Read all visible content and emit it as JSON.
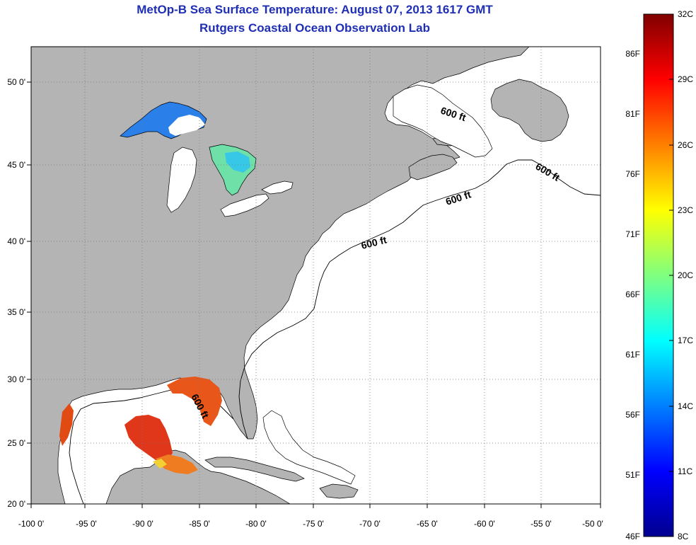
{
  "header": {
    "title": "MetOp-B Sea Surface Temperature:  August 07, 2013 1617 GMT",
    "subtitle": "Rutgers Coastal Ocean Observation Lab"
  },
  "map": {
    "lat_ticks": [
      "50 0'",
      "45 0'",
      "40 0'",
      "35 0'",
      "30 0'",
      "25 0'",
      "20 0'"
    ],
    "lon_ticks": [
      "-100 0'",
      "-95 0'",
      "-90 0'",
      "-85 0'",
      "-80 0'",
      "-75 0'",
      "-70 0'",
      "-65 0'",
      "-60 0'",
      "-55 0'",
      "-50 0'"
    ],
    "lat_range": [
      20,
      52.5
    ],
    "lon_range": [
      -100,
      -50
    ],
    "contour_labels": [
      "600 ft",
      "600 ft",
      "600 ft",
      "600 ft",
      "600 ft"
    ],
    "land_color": "#b4b4b4",
    "ocean_color": "#ffffff"
  },
  "colorbar": {
    "celsius_labels": [
      "32C",
      "29C",
      "26C",
      "23C",
      "20C",
      "17C",
      "14C",
      "11C",
      "8C"
    ],
    "fahrenheit_labels": [
      "86F",
      "81F",
      "76F",
      "71F",
      "66F",
      "61F",
      "56F",
      "51F",
      "46F"
    ],
    "range_c": [
      8,
      32
    ],
    "colormap": [
      "#00008f",
      "#0000ff",
      "#00ffff",
      "#ffff00",
      "#ff0000",
      "#800000"
    ]
  }
}
